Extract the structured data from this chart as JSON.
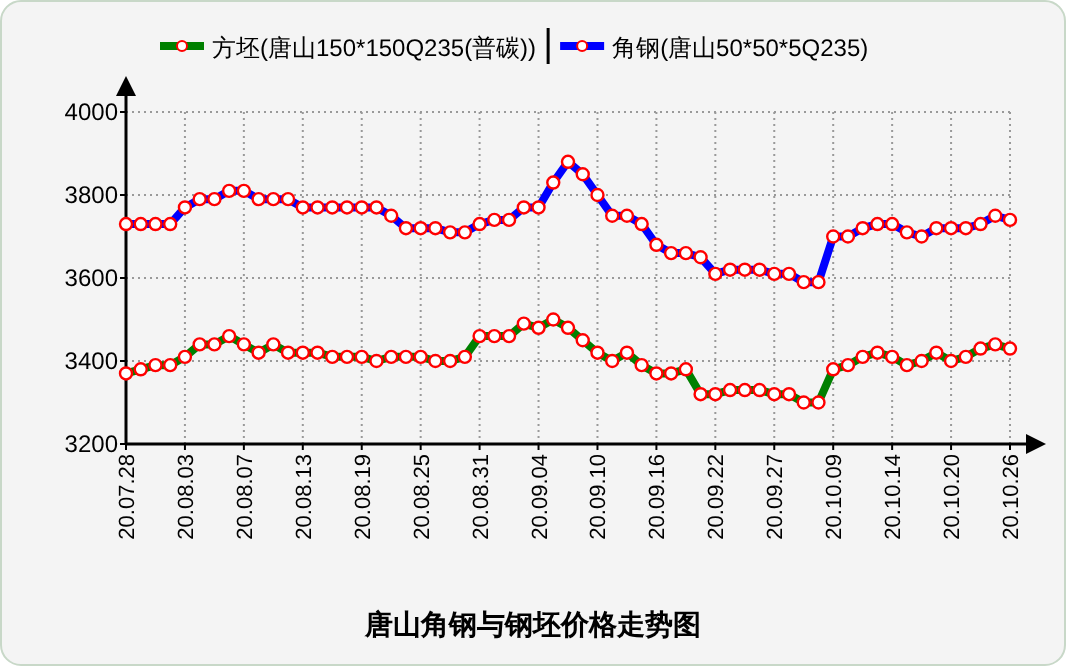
{
  "chart_data": {
    "type": "line",
    "title": "唐山角钢与钢坯价格走势图",
    "categories": [
      "20.07.28",
      null,
      null,
      null,
      "20.08.03",
      null,
      null,
      null,
      "20.08.07",
      null,
      null,
      null,
      "20.08.13",
      null,
      null,
      null,
      "20.08.19",
      null,
      null,
      null,
      "20.08.25",
      null,
      null,
      null,
      "20.08.31",
      null,
      null,
      null,
      "20.09.04",
      null,
      null,
      null,
      "20.09.10",
      null,
      null,
      null,
      "20.09.16",
      null,
      null,
      null,
      "20.09.22",
      null,
      null,
      null,
      "20.09.27",
      null,
      null,
      null,
      "20.10.09",
      null,
      null,
      null,
      "20.10.14",
      null,
      null,
      null,
      "20.10.20",
      null,
      null,
      null,
      "20.10.26"
    ],
    "series": [
      {
        "name": "方坯(唐山150*150Q235(普碳))",
        "color": "#008000",
        "values": [
          3370,
          3380,
          3390,
          3390,
          3410,
          3440,
          3440,
          3460,
          3440,
          3420,
          3440,
          3420,
          3420,
          3420,
          3410,
          3410,
          3410,
          3400,
          3410,
          3410,
          3410,
          3400,
          3400,
          3410,
          3460,
          3460,
          3460,
          3490,
          3480,
          3500,
          3480,
          3450,
          3420,
          3400,
          3420,
          3390,
          3370,
          3370,
          3380,
          3320,
          3320,
          3330,
          3330,
          3330,
          3320,
          3320,
          3300,
          3300,
          3380,
          3390,
          3410,
          3420,
          3410,
          3390,
          3400,
          3420,
          3400,
          3410,
          3430,
          3440,
          3430
        ]
      },
      {
        "name": "角钢(唐山50*50*5Q235)",
        "color": "#0000ff",
        "values": [
          3730,
          3730,
          3730,
          3730,
          3770,
          3790,
          3790,
          3810,
          3810,
          3790,
          3790,
          3790,
          3770,
          3770,
          3770,
          3770,
          3770,
          3770,
          3750,
          3720,
          3720,
          3720,
          3710,
          3710,
          3730,
          3740,
          3740,
          3770,
          3770,
          3830,
          3880,
          3850,
          3800,
          3750,
          3750,
          3730,
          3680,
          3660,
          3660,
          3650,
          3610,
          3620,
          3620,
          3620,
          3610,
          3610,
          3590,
          3590,
          3700,
          3700,
          3720,
          3730,
          3730,
          3710,
          3700,
          3720,
          3720,
          3720,
          3730,
          3750,
          3740
        ]
      }
    ],
    "ylim": [
      3200,
      4000
    ],
    "yticks": [
      3200,
      3400,
      3600,
      3800,
      4000
    ],
    "grid": true,
    "legend": "top",
    "marker": "circle"
  }
}
